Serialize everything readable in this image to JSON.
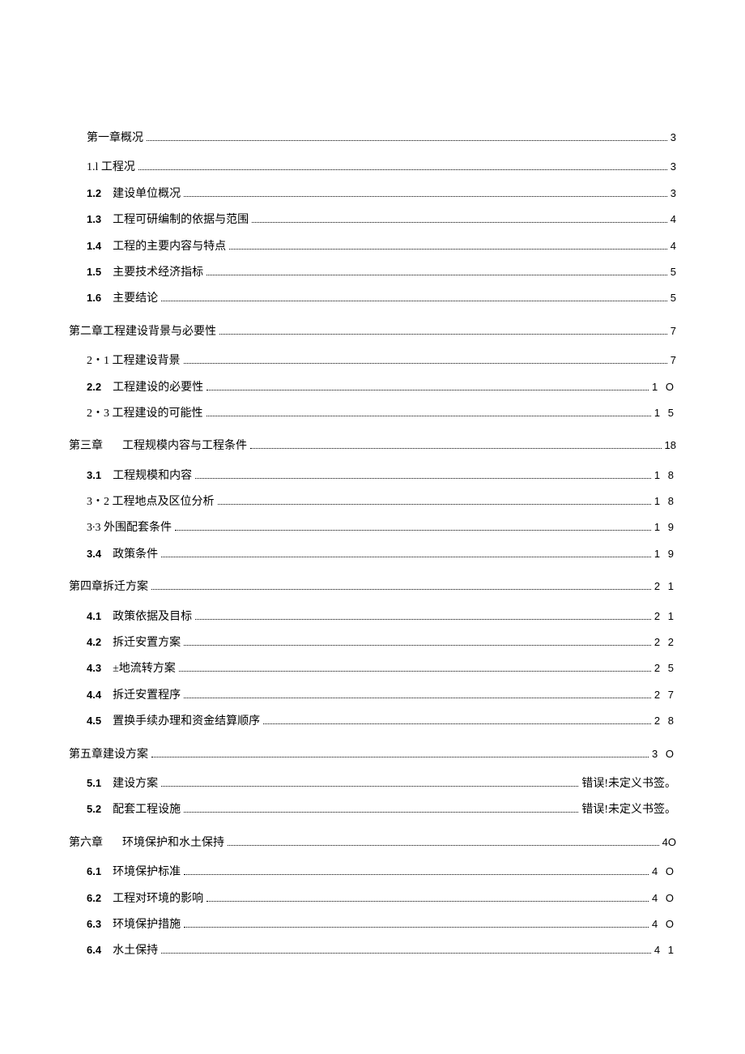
{
  "toc": [
    {
      "level": "level0-first",
      "num": "",
      "title": "第一章概况",
      "leader": true,
      "page": "3",
      "pageClass": "toc-page-single"
    },
    {
      "level": "level1",
      "num": "",
      "numClass": "",
      "title": "1.l 工程况",
      "leader": true,
      "page": "3",
      "pageClass": "toc-page-single"
    },
    {
      "level": "level1",
      "num": "1.2",
      "numClass": "toc-num",
      "title": "建设单位概况",
      "leader": true,
      "page": "3",
      "pageClass": "toc-page-single"
    },
    {
      "level": "level1",
      "num": "1.3",
      "numClass": "toc-num",
      "title": "工程可研编制的依据与范围",
      "leader": true,
      "page": "4",
      "pageClass": "toc-page-single"
    },
    {
      "level": "level1",
      "num": "1.4",
      "numClass": "toc-num",
      "title": "工程的主要内容与特点",
      "leader": true,
      "page": "4",
      "pageClass": "toc-page-single"
    },
    {
      "level": "level1",
      "num": "1.5",
      "numClass": "toc-num",
      "title": "主要技术经济指标",
      "leader": true,
      "page": "5",
      "pageClass": "toc-page-single"
    },
    {
      "level": "level1",
      "num": "1.6",
      "numClass": "toc-num",
      "title": "主要结论",
      "leader": true,
      "page": "5",
      "pageClass": "toc-page-single"
    },
    {
      "level": "level0",
      "num": "",
      "title": "第二章工程建设背景与必要性",
      "leader": true,
      "page": "7",
      "pageClass": "toc-page-single"
    },
    {
      "level": "level1",
      "num": "",
      "numClass": "",
      "title": "2・1 工程建设背景",
      "leader": true,
      "page": "7",
      "pageClass": "toc-page-single"
    },
    {
      "level": "level1",
      "num": "2.2",
      "numClass": "toc-num",
      "title": "工程建设的必要性",
      "leader": true,
      "page": "1 O",
      "pageClass": "toc-page"
    },
    {
      "level": "level1",
      "num": "",
      "numClass": "",
      "title": "2・3 工程建设的可能性",
      "leader": true,
      "page": "1 5",
      "pageClass": "toc-page"
    },
    {
      "level": "level0",
      "chapterLabel": "第三章",
      "num": "",
      "title": "工程规模内容与工程条件",
      "leader": true,
      "page": "18",
      "pageClass": "toc-page-single"
    },
    {
      "level": "level1",
      "num": "3.1",
      "numClass": "toc-num",
      "title": "工程规模和内容",
      "leader": true,
      "page": "1 8",
      "pageClass": "toc-page"
    },
    {
      "level": "level1",
      "num": "",
      "numClass": "",
      "title": "3・2 工程地点及区位分析",
      "leader": true,
      "page": "1 8",
      "pageClass": "toc-page"
    },
    {
      "level": "level1",
      "num": "",
      "numClass": "",
      "title": "3∙3 外围配套条件",
      "leader": true,
      "page": "1 9",
      "pageClass": "toc-page"
    },
    {
      "level": "level1",
      "num": "3.4",
      "numClass": "toc-num",
      "title": "政策条件",
      "leader": true,
      "page": "1 9",
      "pageClass": "toc-page"
    },
    {
      "level": "level0",
      "num": "",
      "title": "第四章拆迁方案",
      "leader": true,
      "page": "2 1",
      "pageClass": "toc-page"
    },
    {
      "level": "level1",
      "num": "4.1",
      "numClass": "toc-num",
      "title": "政策依据及目标",
      "leader": true,
      "page": "2 1",
      "pageClass": "toc-page"
    },
    {
      "level": "level1",
      "num": "4.2",
      "numClass": "toc-num",
      "title": "拆迁安置方案",
      "leader": true,
      "page": "2 2",
      "pageClass": "toc-page"
    },
    {
      "level": "level1",
      "num": "4.3",
      "numClass": "toc-num",
      "title": "±地流转方案",
      "leader": true,
      "page": "2 5",
      "pageClass": "toc-page"
    },
    {
      "level": "level1",
      "num": "4.4",
      "numClass": "toc-num",
      "title": "拆迁安置程序",
      "leader": true,
      "page": "2 7",
      "pageClass": "toc-page"
    },
    {
      "level": "level1",
      "num": "4.5",
      "numClass": "toc-num",
      "title": "置换手续办理和资金结算顺序",
      "leader": true,
      "page": "2 8",
      "pageClass": "toc-page"
    },
    {
      "level": "level0",
      "num": "",
      "title": "第五章建设方案",
      "leader": true,
      "page": "3 O",
      "pageClass": "toc-page"
    },
    {
      "level": "level1",
      "num": "5.1",
      "numClass": "toc-num",
      "title": "建设方案",
      "leader": true,
      "page": "错误!未定义书签。",
      "pageClass": "toc-page-text"
    },
    {
      "level": "level1",
      "num": "5.2",
      "numClass": "toc-num",
      "title": "配套工程设施",
      "leader": true,
      "page": "错误!未定义书签。",
      "pageClass": "toc-page-text"
    },
    {
      "level": "level0",
      "chapterLabel": "第六章",
      "num": "",
      "title": "环境保护和水土保持",
      "leader": true,
      "page": "4O",
      "pageClass": "toc-page-single"
    },
    {
      "level": "level1",
      "num": "6.1",
      "numClass": "toc-num",
      "title": "环境保护标准",
      "leader": true,
      "page": "4 O",
      "pageClass": "toc-page"
    },
    {
      "level": "level1",
      "num": "6.2",
      "numClass": "toc-num",
      "title": "工程对环境的影响",
      "leader": true,
      "page": "4 O",
      "pageClass": "toc-page"
    },
    {
      "level": "level1",
      "num": "6.3",
      "numClass": "toc-num",
      "title": "环境保护措施",
      "leader": true,
      "page": "4 O",
      "pageClass": "toc-page"
    },
    {
      "level": "level1",
      "num": "6.4",
      "numClass": "toc-num",
      "title": "水土保持",
      "leader": true,
      "page": "4 1",
      "pageClass": "toc-page"
    }
  ]
}
